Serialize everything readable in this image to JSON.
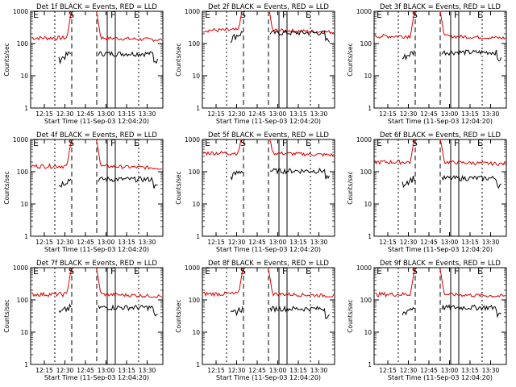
{
  "figure": {
    "start_time_label": "Start Time (11-Sep-03 12:04:20)",
    "ylabel": "Counts/sec"
  },
  "chart_data": [
    {
      "type": "line",
      "title": "Det 1f BLACK = Events, RED = LLD",
      "xlabel": "Start Time (11-Sep-03 12:04:20)",
      "ylabel": "Counts/sec",
      "yscale": "log",
      "ylim": [
        1,
        1000
      ],
      "xticks": [
        "12:15",
        "12:30",
        "12:45",
        "13:00",
        "13:15",
        "13:30"
      ],
      "yticks": [
        "1",
        "10",
        "100",
        "1000"
      ],
      "markers": [
        "E",
        "S",
        "F",
        "E"
      ],
      "series": [
        {
          "name": "Events",
          "color": "#000000",
          "level": 50
        },
        {
          "name": "LLD",
          "color": "#dd0000",
          "level": 150
        }
      ]
    },
    {
      "type": "line",
      "title": "Det 2f BLACK = Events, RED = LLD",
      "xlabel": "Start Time (11-Sep-03 12:04:20)",
      "ylabel": "Counts/sec",
      "yscale": "log",
      "ylim": [
        1,
        1000
      ],
      "xticks": [
        "12:15",
        "12:30",
        "12:45",
        "13:00",
        "13:15",
        "13:30"
      ],
      "yticks": [
        "1",
        "10",
        "100",
        "1000"
      ],
      "markers": [
        "E",
        "S",
        "F",
        "E"
      ],
      "series": [
        {
          "name": "Events",
          "color": "#000000",
          "level": 220
        },
        {
          "name": "LLD",
          "color": "#dd0000",
          "level": 260
        }
      ]
    },
    {
      "type": "line",
      "title": "Det 3f BLACK = Events, RED = LLD",
      "xlabel": "Start Time (11-Sep-03 12:04:20)",
      "ylabel": "Counts/sec",
      "yscale": "log",
      "ylim": [
        1,
        1000
      ],
      "xticks": [
        "12:15",
        "12:30",
        "12:45",
        "13:00",
        "13:15",
        "13:30"
      ],
      "yticks": [
        "1",
        "10",
        "100",
        "1000"
      ],
      "markers": [
        "E",
        "S",
        "F",
        "E"
      ],
      "series": [
        {
          "name": "Events",
          "color": "#000000",
          "level": 55
        },
        {
          "name": "LLD",
          "color": "#dd0000",
          "level": 170
        }
      ]
    },
    {
      "type": "line",
      "title": "Det 4f BLACK = Events, RED = LLD",
      "xlabel": "Start Time (11-Sep-03 12:04:20)",
      "ylabel": "Counts/sec",
      "yscale": "log",
      "ylim": [
        1,
        1000
      ],
      "xticks": [
        "12:15",
        "12:30",
        "12:45",
        "13:00",
        "13:15",
        "13:30"
      ],
      "yticks": [
        "1",
        "10",
        "100",
        "1000"
      ],
      "markers": [
        "E",
        "S",
        "F",
        "E"
      ],
      "series": [
        {
          "name": "Events",
          "color": "#000000",
          "level": 60
        },
        {
          "name": "LLD",
          "color": "#dd0000",
          "level": 150
        }
      ]
    },
    {
      "type": "line",
      "title": "Det 5f BLACK = Events, RED = LLD",
      "xlabel": "Start Time (11-Sep-03 12:04:20)",
      "ylabel": "Counts/sec",
      "yscale": "log",
      "ylim": [
        1,
        1000
      ],
      "xticks": [
        "12:15",
        "12:30",
        "12:45",
        "13:00",
        "13:15",
        "13:30"
      ],
      "yticks": [
        "1",
        "10",
        "100",
        "1000"
      ],
      "markers": [
        "E",
        "S",
        "F",
        "E"
      ],
      "series": [
        {
          "name": "Events",
          "color": "#000000",
          "level": 110
        },
        {
          "name": "LLD",
          "color": "#dd0000",
          "level": 380
        }
      ]
    },
    {
      "type": "line",
      "title": "Det 6f BLACK = Events, RED = LLD",
      "xlabel": "Start Time (11-Sep-03 12:04:20)",
      "ylabel": "Counts/sec",
      "yscale": "log",
      "ylim": [
        1,
        1000
      ],
      "xticks": [
        "12:15",
        "12:30",
        "12:45",
        "13:00",
        "13:15",
        "13:30"
      ],
      "yticks": [
        "1",
        "10",
        "100",
        "1000"
      ],
      "markers": [
        "E",
        "S",
        "F",
        "E"
      ],
      "series": [
        {
          "name": "Events",
          "color": "#000000",
          "level": 65
        },
        {
          "name": "LLD",
          "color": "#dd0000",
          "level": 200
        }
      ]
    },
    {
      "type": "line",
      "title": "Det 7f BLACK = Events, RED = LLD",
      "xlabel": "Start Time (11-Sep-03 12:04:20)",
      "ylabel": "Counts/sec",
      "yscale": "log",
      "ylim": [
        1,
        1000
      ],
      "xticks": [
        "12:15",
        "12:30",
        "12:45",
        "13:00",
        "13:15",
        "13:30"
      ],
      "yticks": [
        "1",
        "10",
        "100",
        "1000"
      ],
      "markers": [
        "E",
        "S",
        "F",
        "E"
      ],
      "series": [
        {
          "name": "Events",
          "color": "#000000",
          "level": 60
        },
        {
          "name": "LLD",
          "color": "#dd0000",
          "level": 150
        }
      ]
    },
    {
      "type": "line",
      "title": "Det 8f BLACK = Events, RED = LLD",
      "xlabel": "Start Time (11-Sep-03 12:04:20)",
      "ylabel": "Counts/sec",
      "yscale": "log",
      "ylim": [
        1,
        1000
      ],
      "xticks": [
        "12:15",
        "12:30",
        "12:45",
        "13:00",
        "13:15",
        "13:30"
      ],
      "yticks": [
        "1",
        "10",
        "100",
        "1000"
      ],
      "markers": [
        "E",
        "S",
        "F",
        "E"
      ],
      "series": [
        {
          "name": "Events",
          "color": "#000000",
          "level": 55
        },
        {
          "name": "LLD",
          "color": "#dd0000",
          "level": 155
        }
      ]
    },
    {
      "type": "line",
      "title": "Det 9f BLACK = Events, RED = LLD",
      "xlabel": "Start Time (11-Sep-03 12:04:20)",
      "ylabel": "Counts/sec",
      "yscale": "log",
      "ylim": [
        1,
        1000
      ],
      "xticks": [
        "12:15",
        "12:30",
        "12:45",
        "13:00",
        "13:15",
        "13:30"
      ],
      "yticks": [
        "1",
        "10",
        "100",
        "1000"
      ],
      "markers": [
        "E",
        "S",
        "F",
        "E"
      ],
      "series": [
        {
          "name": "Events",
          "color": "#000000",
          "level": 60
        },
        {
          "name": "LLD",
          "color": "#dd0000",
          "level": 150
        }
      ]
    }
  ]
}
